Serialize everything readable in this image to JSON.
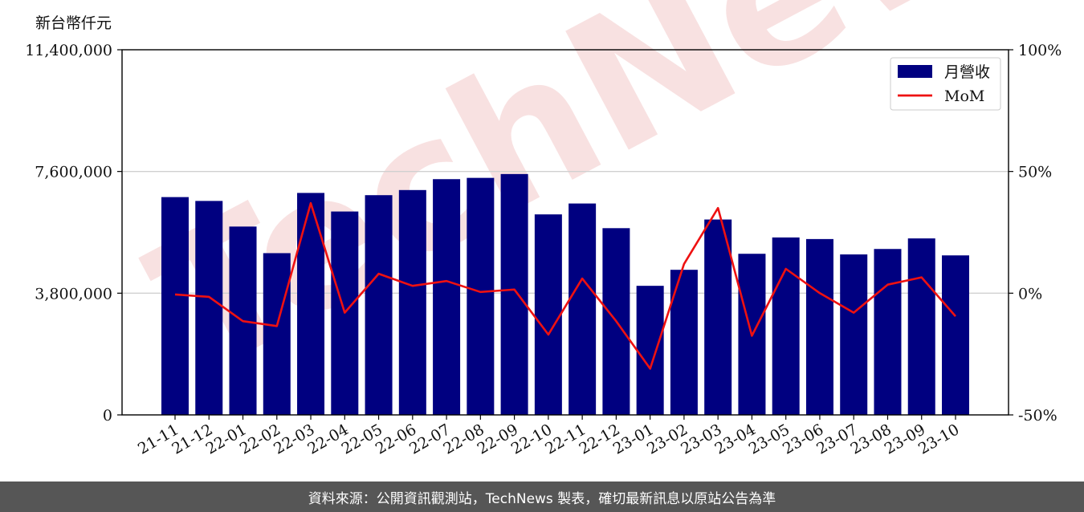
{
  "unit_label": "新台幣仟元",
  "footer_text": "資料來源：公開資訊觀測站，TechNews 製表，確切最新訊息以原站公告為準",
  "watermark_text": "TechNews",
  "colors": {
    "bar": "#000080",
    "line": "#ee1111",
    "grid": "#d0d0d0",
    "footer_bg": "#565656"
  },
  "chart_data": {
    "type": "bar",
    "categories": [
      "21-11",
      "21-12",
      "22-01",
      "22-02",
      "22-03",
      "22-04",
      "22-05",
      "22-06",
      "22-07",
      "22-08",
      "22-09",
      "22-10",
      "22-11",
      "22-12",
      "23-01",
      "23-02",
      "23-03",
      "23-04",
      "23-05",
      "23-06",
      "23-07",
      "23-08",
      "23-09",
      "23-10"
    ],
    "series": [
      {
        "name": "月營收",
        "type": "bar",
        "axis": "left",
        "values": [
          6800000,
          6680000,
          5880000,
          5050000,
          6930000,
          6350000,
          6860000,
          7020000,
          7360000,
          7400000,
          7520000,
          6260000,
          6600000,
          5830000,
          4030000,
          4530000,
          6100000,
          5030000,
          5540000,
          5490000,
          5010000,
          5180000,
          5510000,
          4980000
        ]
      },
      {
        "name": "MoM",
        "type": "line",
        "axis": "right",
        "values": [
          -0.5,
          -1.5,
          -11.5,
          -13.5,
          37.0,
          -8.0,
          8.0,
          3.0,
          5.0,
          0.5,
          1.5,
          -17.0,
          6.0,
          -11.5,
          -31.0,
          12.0,
          35.0,
          -17.5,
          10.0,
          0.0,
          -8.0,
          3.5,
          6.5,
          -9.5
        ]
      }
    ],
    "left_axis": {
      "ylim": [
        0,
        11400000
      ],
      "ticks": [
        0,
        3800000,
        7600000,
        11400000
      ],
      "tick_labels": [
        "0",
        "3,800,000",
        "7,600,000",
        "11,400,000"
      ]
    },
    "right_axis": {
      "ylim": [
        -50,
        100
      ],
      "ticks": [
        -50,
        0,
        50,
        100
      ],
      "tick_labels": [
        "-50%",
        "0%",
        "50%",
        "100%"
      ]
    },
    "grid": true,
    "legend_placement": "top-right"
  }
}
